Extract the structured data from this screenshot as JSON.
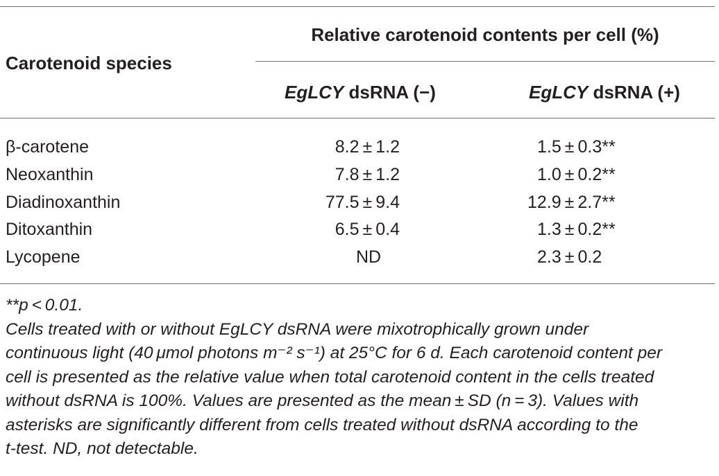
{
  "table": {
    "header": {
      "row_label": "Carotenoid species",
      "group_label": "Relative carotenoid contents per cell (%)",
      "columns": [
        {
          "gene": "EgLCY",
          "rest": " dsRNA (−)"
        },
        {
          "gene": "EgLCY",
          "rest": " dsRNA (+)"
        }
      ]
    },
    "rows": [
      {
        "species": "β-carotene",
        "minus": "8.2 ± 1.2",
        "plus": "1.5 ± 0.3",
        "plus_sig": "**"
      },
      {
        "species": "Neoxanthin",
        "minus": "7.8 ± 1.2",
        "plus": "1.0 ± 0.2",
        "plus_sig": "**"
      },
      {
        "species": "Diadinoxanthin",
        "minus": "77.5 ± 9.4",
        "plus": "12.9 ± 2.7",
        "plus_sig": "**"
      },
      {
        "species": "Ditoxanthin",
        "minus": "6.5 ± 0.4",
        "plus": "1.3 ± 0.2",
        "plus_sig": "**"
      },
      {
        "species": "Lycopene",
        "minus": "ND",
        "plus": "2.3 ± 0.2",
        "plus_sig": ""
      }
    ]
  },
  "footnotes": {
    "significance": "**p < 0.01.",
    "lines": [
      "Cells treated with or without EgLCY dsRNA were mixotrophically grown under",
      "continuous light (40 μmol photons m⁻² s⁻¹) at 25°C for 6 d. Each carotenoid content per",
      "cell is presented as the relative value when total carotenoid content in the cells treated",
      "without dsRNA is 100%. Values are presented as the mean ± SD (n = 3). Values with",
      "asterisks are significantly different from cells treated without dsRNA according to the",
      "t-test. ND, not detectable."
    ]
  }
}
